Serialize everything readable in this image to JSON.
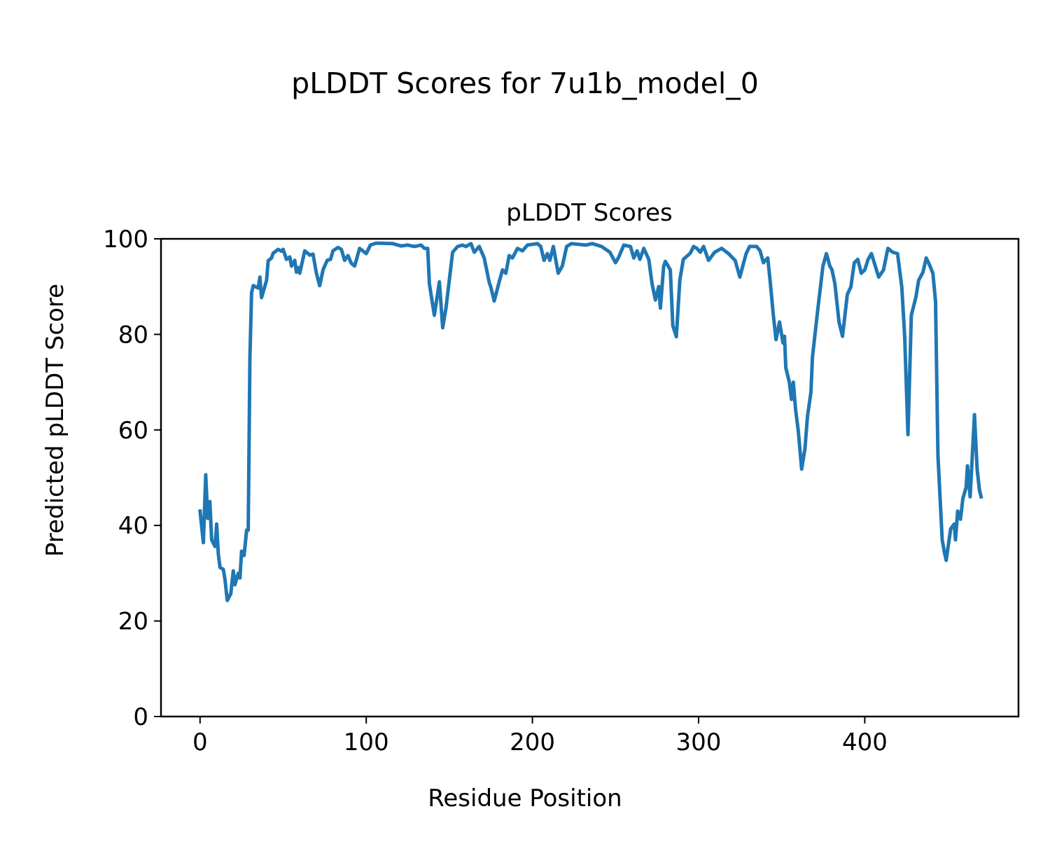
{
  "figure": {
    "suptitle": "pLDDT Scores for 7u1b_model_0"
  },
  "chart_data": {
    "type": "line",
    "title": "pLDDT Scores",
    "xlabel": "Residue Position",
    "ylabel": "Predicted pLDDT Score",
    "xlim": [
      -23.5,
      492.5
    ],
    "ylim": [
      0,
      100
    ],
    "xticks": [
      0,
      100,
      200,
      300,
      400
    ],
    "yticks": [
      0,
      20,
      40,
      60,
      80,
      100
    ],
    "grid": false,
    "series": [
      {
        "name": "pLDDT",
        "color": "#1f77b4",
        "points": [
          [
            0,
            43
          ],
          [
            2,
            36.4
          ],
          [
            3.4,
            50.6
          ],
          [
            4.6,
            41.5
          ],
          [
            5.9,
            45
          ],
          [
            7,
            37
          ],
          [
            9,
            35.6
          ],
          [
            10,
            40.3
          ],
          [
            11,
            34
          ],
          [
            12,
            31.2
          ],
          [
            14,
            30.8
          ],
          [
            15,
            28.7
          ],
          [
            16.4,
            24.3
          ],
          [
            18.5,
            25.7
          ],
          [
            20,
            30.5
          ],
          [
            21,
            27.6
          ],
          [
            23,
            30
          ],
          [
            24,
            29
          ],
          [
            25,
            34.6
          ],
          [
            26.5,
            33.7
          ],
          [
            28,
            39
          ],
          [
            29,
            39
          ],
          [
            30,
            75
          ],
          [
            31,
            88.7
          ],
          [
            32,
            90.2
          ],
          [
            35,
            89.7
          ],
          [
            36,
            92
          ],
          [
            37,
            87.7
          ],
          [
            40,
            91.3
          ],
          [
            41,
            95.4
          ],
          [
            43,
            96
          ],
          [
            44,
            97
          ],
          [
            47,
            97.8
          ],
          [
            49,
            97.4
          ],
          [
            50,
            97.8
          ],
          [
            52,
            95.7
          ],
          [
            54,
            96.2
          ],
          [
            55,
            94.3
          ],
          [
            57,
            95.5
          ],
          [
            58,
            93
          ],
          [
            59,
            94
          ],
          [
            60,
            92.8
          ],
          [
            63,
            97.5
          ],
          [
            66,
            96.6
          ],
          [
            68,
            96.8
          ],
          [
            70,
            92.8
          ],
          [
            72,
            90.2
          ],
          [
            74,
            93.5
          ],
          [
            76.5,
            95.5
          ],
          [
            78.5,
            95.7
          ],
          [
            80,
            97.5
          ],
          [
            83,
            98.2
          ],
          [
            85,
            97.8
          ],
          [
            87,
            95.5
          ],
          [
            89,
            96.5
          ],
          [
            91,
            94.9
          ],
          [
            93,
            94.3
          ],
          [
            96,
            98
          ],
          [
            100,
            96.9
          ],
          [
            102.5,
            98.7
          ],
          [
            106,
            99.1
          ],
          [
            116,
            99
          ],
          [
            121,
            98.5
          ],
          [
            125,
            98.7
          ],
          [
            129,
            98.4
          ],
          [
            133,
            98.7
          ],
          [
            135,
            98
          ],
          [
            137,
            98
          ],
          [
            138,
            90.6
          ],
          [
            141,
            84
          ],
          [
            144,
            91
          ],
          [
            146,
            81.4
          ],
          [
            148,
            85.5
          ],
          [
            150,
            91.4
          ],
          [
            152,
            97.2
          ],
          [
            155,
            98.4
          ],
          [
            158,
            98.7
          ],
          [
            160,
            98.4
          ],
          [
            163,
            99
          ],
          [
            165,
            97.2
          ],
          [
            168,
            98.4
          ],
          [
            171,
            96
          ],
          [
            174,
            90.9
          ],
          [
            175,
            89.9
          ],
          [
            177,
            87
          ],
          [
            180,
            91
          ],
          [
            182,
            93.5
          ],
          [
            184,
            92.8
          ],
          [
            186,
            96.5
          ],
          [
            188,
            96
          ],
          [
            191,
            98
          ],
          [
            194,
            97.5
          ],
          [
            197,
            98.7
          ],
          [
            203,
            99
          ],
          [
            205,
            98.4
          ],
          [
            207,
            95.5
          ],
          [
            209,
            96.9
          ],
          [
            210.5,
            95.5
          ],
          [
            212.6,
            98.4
          ],
          [
            215.5,
            92.8
          ],
          [
            218,
            94.3
          ],
          [
            220.6,
            98.4
          ],
          [
            223.5,
            99
          ],
          [
            232,
            98.7
          ],
          [
            236,
            99
          ],
          [
            241.6,
            98.4
          ],
          [
            246.6,
            97.2
          ],
          [
            250,
            95
          ],
          [
            251.7,
            96
          ],
          [
            255,
            98.7
          ],
          [
            259,
            98.4
          ],
          [
            261,
            96
          ],
          [
            263,
            97.5
          ],
          [
            264.7,
            95.7
          ],
          [
            267,
            98
          ],
          [
            270,
            95.7
          ],
          [
            272,
            90.6
          ],
          [
            274,
            87.2
          ],
          [
            276,
            90
          ],
          [
            277,
            85.5
          ],
          [
            279,
            94.3
          ],
          [
            280,
            95.3
          ],
          [
            283,
            93.5
          ],
          [
            284.5,
            81.8
          ],
          [
            286.6,
            79.5
          ],
          [
            288.7,
            91.4
          ],
          [
            290.8,
            95.7
          ],
          [
            295,
            97
          ],
          [
            297,
            98.4
          ],
          [
            299,
            98
          ],
          [
            301,
            97.2
          ],
          [
            303,
            98.4
          ],
          [
            306,
            95.5
          ],
          [
            309.7,
            97.2
          ],
          [
            313.9,
            98
          ],
          [
            318,
            96.9
          ],
          [
            322,
            95.5
          ],
          [
            324.8,
            92
          ],
          [
            328.6,
            96.9
          ],
          [
            330.7,
            98.4
          ],
          [
            334.9,
            98.4
          ],
          [
            337,
            97.5
          ],
          [
            339,
            95
          ],
          [
            341.6,
            96
          ],
          [
            343,
            91.3
          ],
          [
            345,
            84
          ],
          [
            346.6,
            78.9
          ],
          [
            348.7,
            82.6
          ],
          [
            350.8,
            78.2
          ],
          [
            351.7,
            79.6
          ],
          [
            352.5,
            73
          ],
          [
            354.6,
            70
          ],
          [
            355.9,
            66.4
          ],
          [
            357,
            70
          ],
          [
            358.4,
            64.2
          ],
          [
            360,
            59.8
          ],
          [
            362,
            51.8
          ],
          [
            364,
            56
          ],
          [
            365.5,
            62.8
          ],
          [
            367.6,
            67.9
          ],
          [
            368.5,
            75.2
          ],
          [
            371.8,
            85.5
          ],
          [
            374.8,
            94.3
          ],
          [
            376.9,
            96.9
          ],
          [
            379,
            94.3
          ],
          [
            380.3,
            93.5
          ],
          [
            382,
            90.6
          ],
          [
            384.5,
            82.6
          ],
          [
            386.6,
            79.6
          ],
          [
            389.5,
            88.4
          ],
          [
            391.6,
            89.9
          ],
          [
            393.7,
            95
          ],
          [
            395.8,
            95.7
          ],
          [
            397.9,
            92.8
          ],
          [
            400,
            93.5
          ],
          [
            402,
            95.7
          ],
          [
            404,
            96.9
          ],
          [
            408.4,
            92
          ],
          [
            411.3,
            93.5
          ],
          [
            413.9,
            98
          ],
          [
            416.8,
            97.2
          ],
          [
            419.7,
            96.9
          ],
          [
            422.3,
            89.9
          ],
          [
            424,
            79.6
          ],
          [
            426,
            59
          ],
          [
            428,
            84
          ],
          [
            430.7,
            87.7
          ],
          [
            432.4,
            91.3
          ],
          [
            435,
            93
          ],
          [
            437,
            96
          ],
          [
            439,
            94.5
          ],
          [
            441,
            92.8
          ],
          [
            442.6,
            86.9
          ],
          [
            444,
            54.7
          ],
          [
            446.6,
            37
          ],
          [
            448,
            34.2
          ],
          [
            449,
            32.7
          ],
          [
            451.7,
            39.3
          ],
          [
            453.8,
            40.3
          ],
          [
            454.6,
            37
          ],
          [
            455.9,
            43
          ],
          [
            457.6,
            41.3
          ],
          [
            459,
            45.6
          ],
          [
            461,
            48
          ],
          [
            461.8,
            52.5
          ],
          [
            463.4,
            46
          ],
          [
            466,
            63.2
          ],
          [
            467.6,
            51.8
          ],
          [
            469,
            47.4
          ],
          [
            470,
            46
          ]
        ]
      }
    ]
  }
}
